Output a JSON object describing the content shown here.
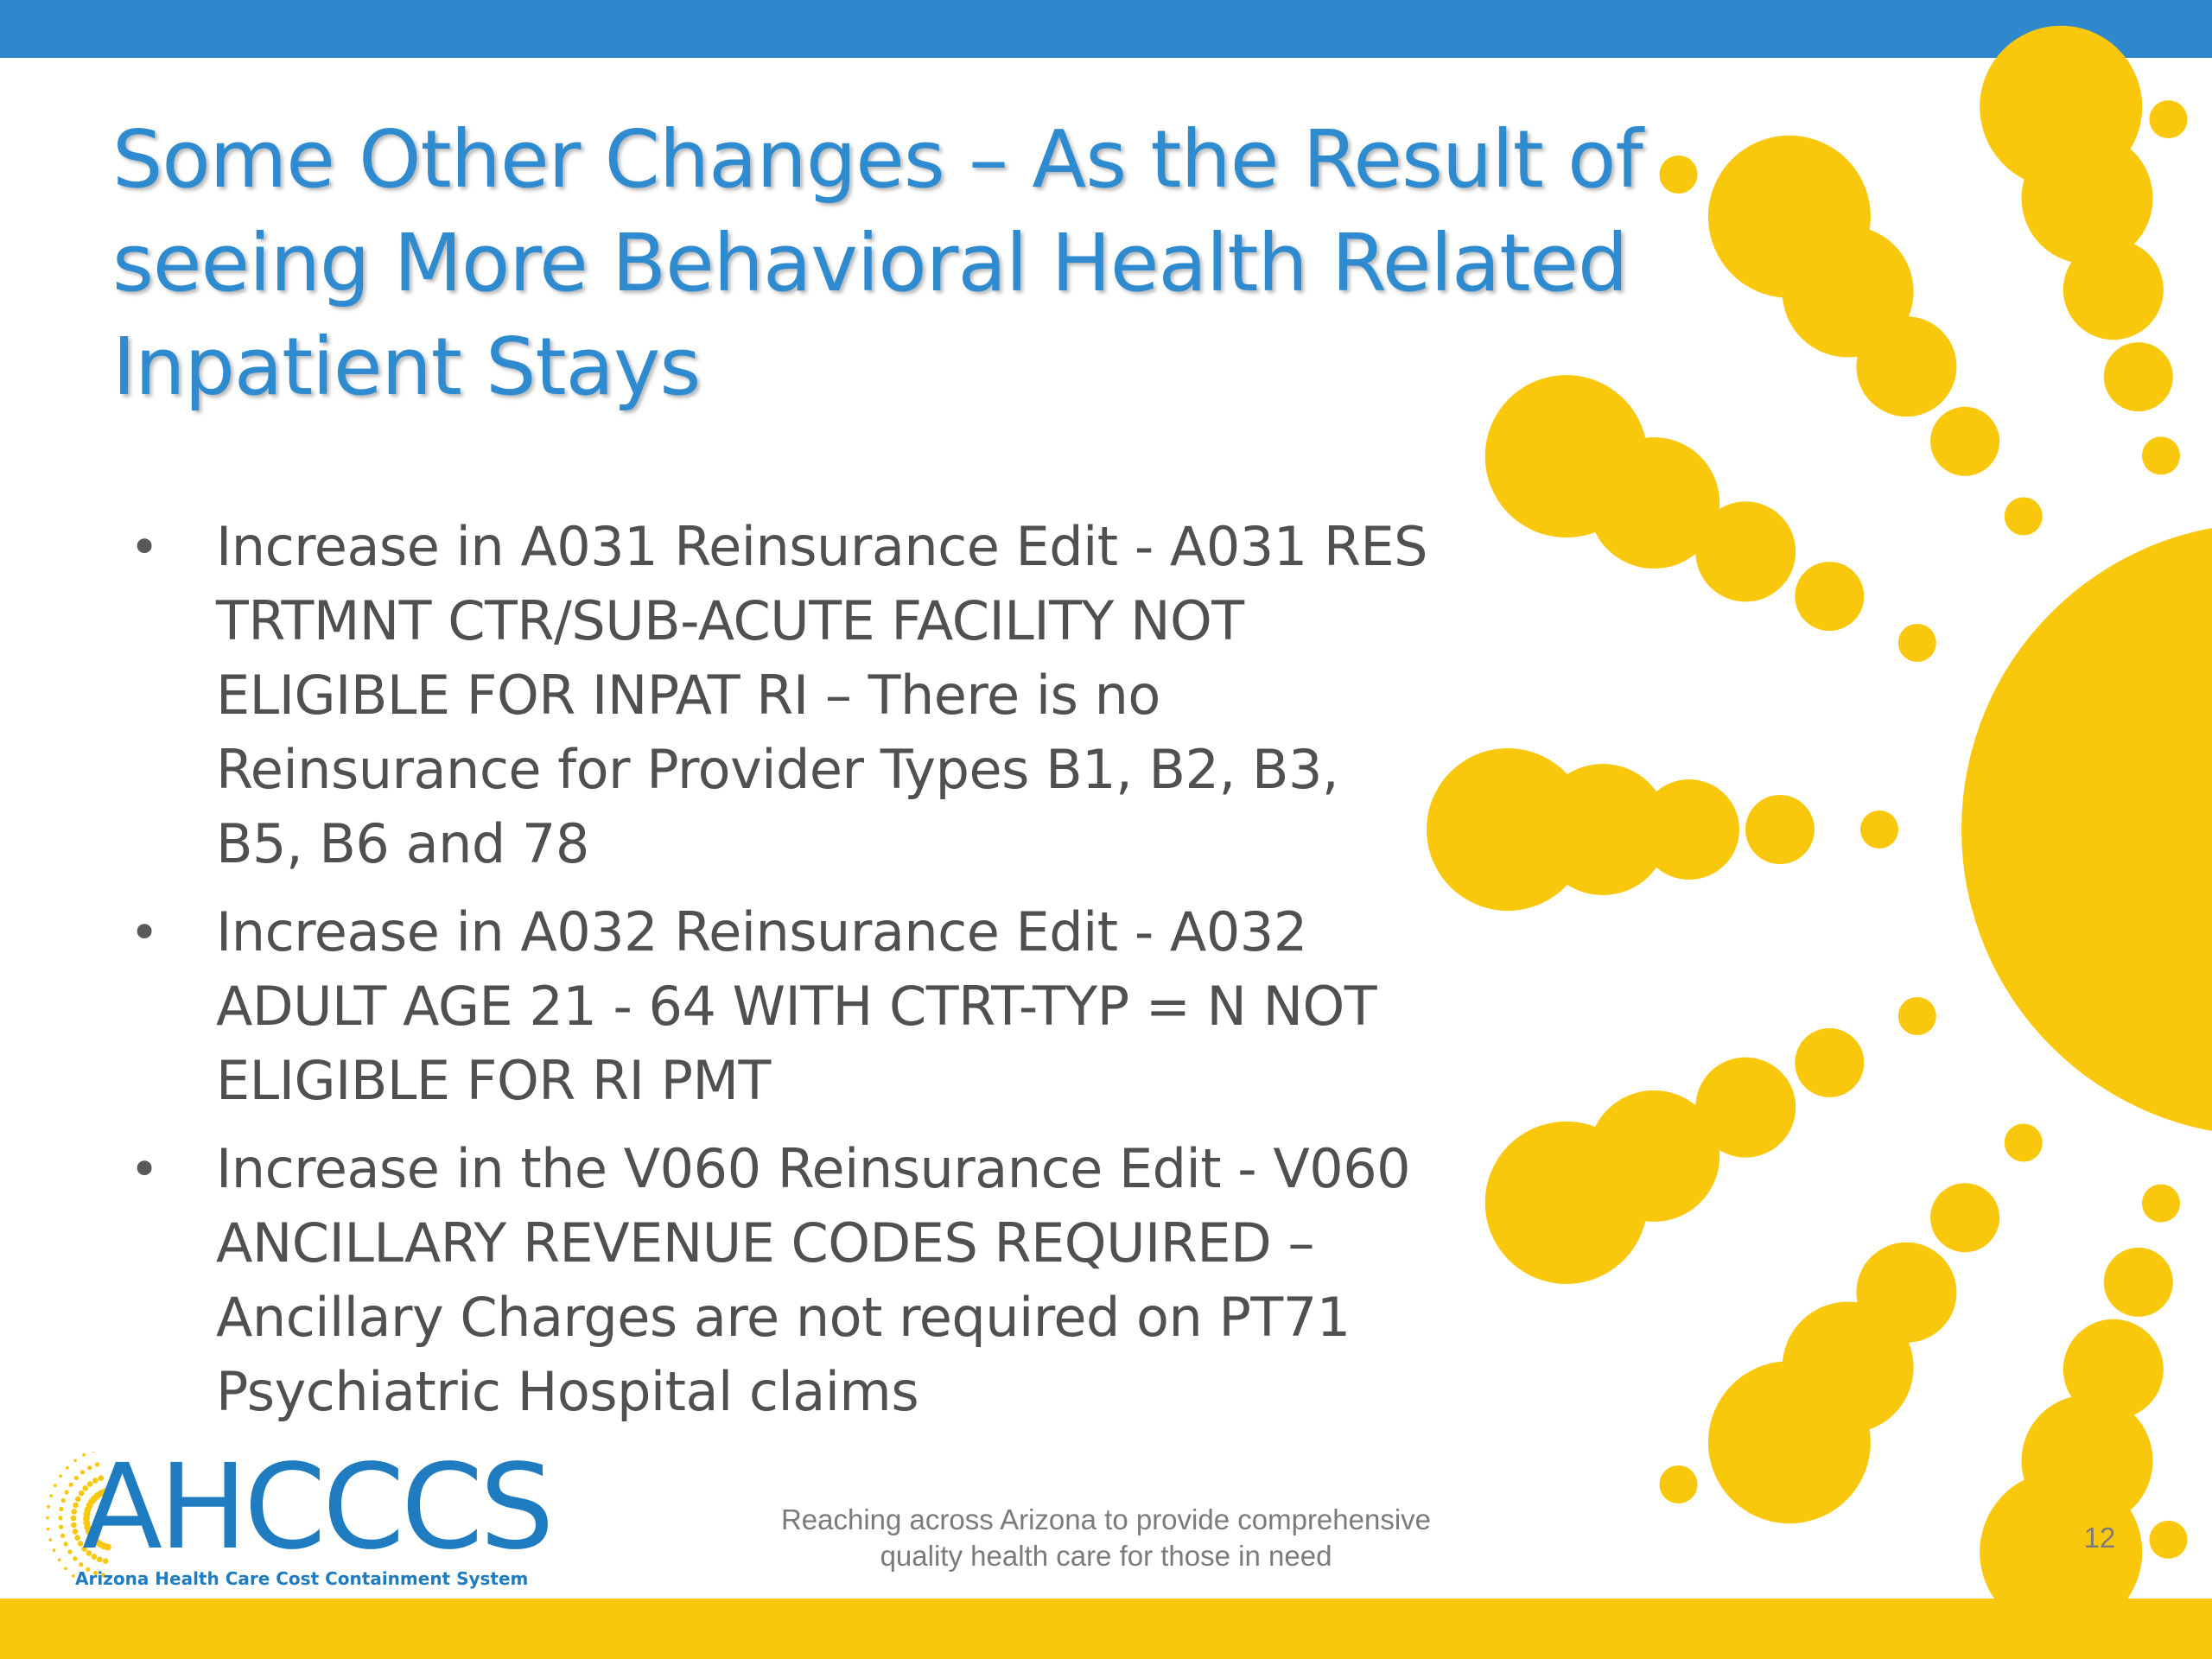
{
  "slide": {
    "title_lines": [
      "Some Other Changes – As the Result of",
      "seeing More Behavioral Health Related",
      "Inpatient Stays"
    ],
    "bullets": [
      {
        "lines": [
          "Increase in A031 Reinsurance Edit - A031 RES",
          "TRTMNT CTR/SUB-ACUTE FACILITY NOT",
          "ELIGIBLE FOR INPAT RI – There is no",
          "Reinsurance for Provider Types B1, B2, B3,",
          "B5, B6 and 78"
        ]
      },
      {
        "lines": [
          "Increase in A032 Reinsurance Edit - A032",
          "ADULT AGE 21 - 64 WITH CTRT-TYP = N NOT",
          "ELIGIBLE FOR RI PMT"
        ]
      },
      {
        "lines": [
          "Increase in the V060 Reinsurance Edit  - V060",
          "ANCILLARY REVENUE CODES REQUIRED –",
          "Ancillary Charges are not required on PT71",
          "Psychiatric Hospital claims"
        ]
      }
    ],
    "bullet_symbol": "•"
  },
  "footer": {
    "logo_text": "AHCCCS",
    "logo_subtitle": "Arizona Health Care Cost Containment System",
    "tagline_lines": [
      "Reaching across Arizona to provide comprehensive",
      "quality health care for those in need"
    ],
    "page_number": "12"
  },
  "colors": {
    "top_bar": "#2e88cb",
    "bottom_bar": "#f9c70c",
    "sun": "#f9c70c",
    "title": "#2e8bd0",
    "body_text": "#505050",
    "logo": "#1f7cc1"
  },
  "icons": {
    "sun_graphic": "sun-rays-decoration",
    "logo_burst": "sun-burst-icon"
  }
}
